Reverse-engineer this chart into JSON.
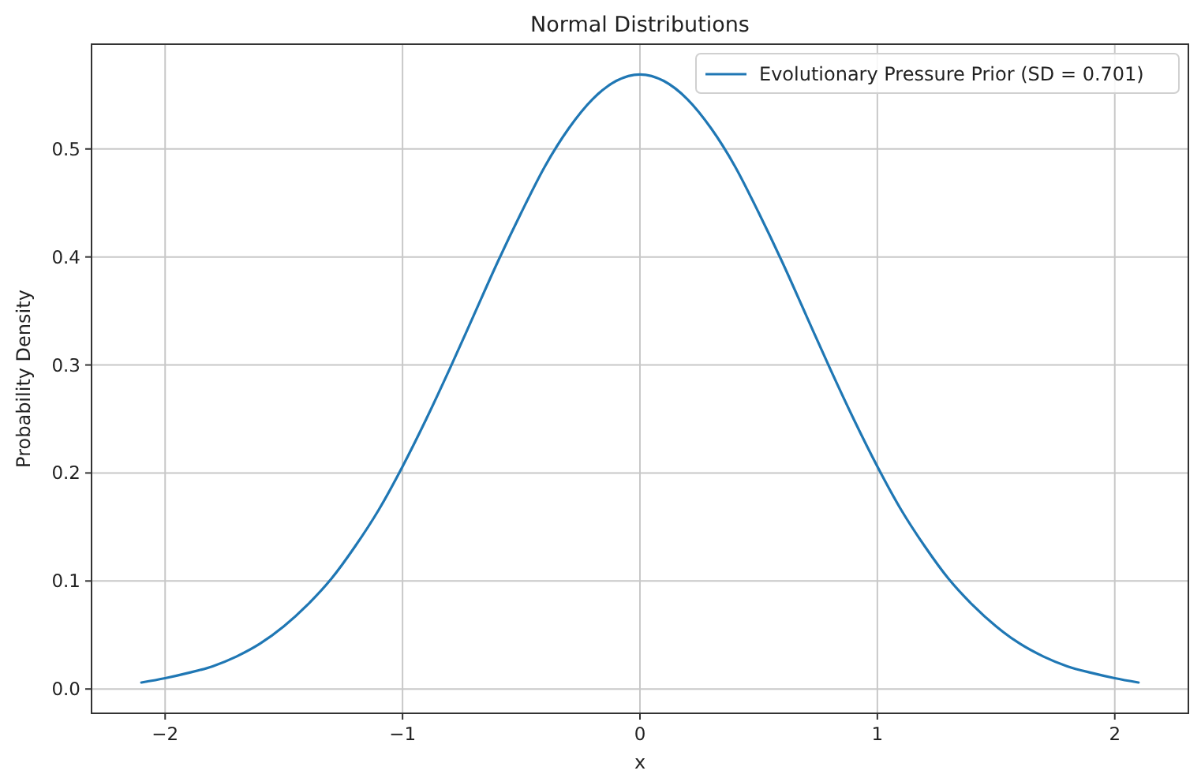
{
  "chart_data": {
    "type": "line",
    "title": "Normal Distributions",
    "xlabel": "x",
    "ylabel": "Probability Density",
    "x": [
      -2.1,
      -2.0,
      -1.9,
      -1.8,
      -1.7,
      -1.6,
      -1.5,
      -1.4,
      -1.3,
      -1.2,
      -1.1,
      -1.0,
      -0.9,
      -0.8,
      -0.7,
      -0.6,
      -0.5,
      -0.4,
      -0.3,
      -0.2,
      -0.1,
      0,
      0.1,
      0.2,
      0.3,
      0.4,
      0.5,
      0.6,
      0.7,
      0.8,
      0.9,
      1.0,
      1.1,
      1.2,
      1.3,
      1.4,
      1.5,
      1.6,
      1.7,
      1.8,
      1.9,
      2.0,
      2.1
    ],
    "series": [
      {
        "name": "Evolutionary Pressure Prior (SD = 0.701)",
        "color": "#1f77b4",
        "values": [
          0.006,
          0.01,
          0.015,
          0.021,
          0.03,
          0.042,
          0.058,
          0.078,
          0.102,
          0.132,
          0.166,
          0.206,
          0.25,
          0.297,
          0.346,
          0.395,
          0.441,
          0.484,
          0.519,
          0.546,
          0.563,
          0.569,
          0.563,
          0.546,
          0.519,
          0.484,
          0.441,
          0.395,
          0.346,
          0.297,
          0.25,
          0.206,
          0.166,
          0.132,
          0.102,
          0.078,
          0.058,
          0.042,
          0.03,
          0.021,
          0.015,
          0.01,
          0.006
        ]
      }
    ],
    "xlim": [
      -2.31,
      2.31
    ],
    "ylim": [
      -0.0225,
      0.597
    ],
    "xticks": [
      {
        "value": -2,
        "label": "−2"
      },
      {
        "value": -1,
        "label": "−1"
      },
      0,
      1,
      2
    ],
    "yticks": [
      {
        "value": 0,
        "label": "0.0"
      },
      0.1,
      0.2,
      0.3,
      0.4,
      0.5
    ],
    "grid": true,
    "legend": "top right"
  }
}
